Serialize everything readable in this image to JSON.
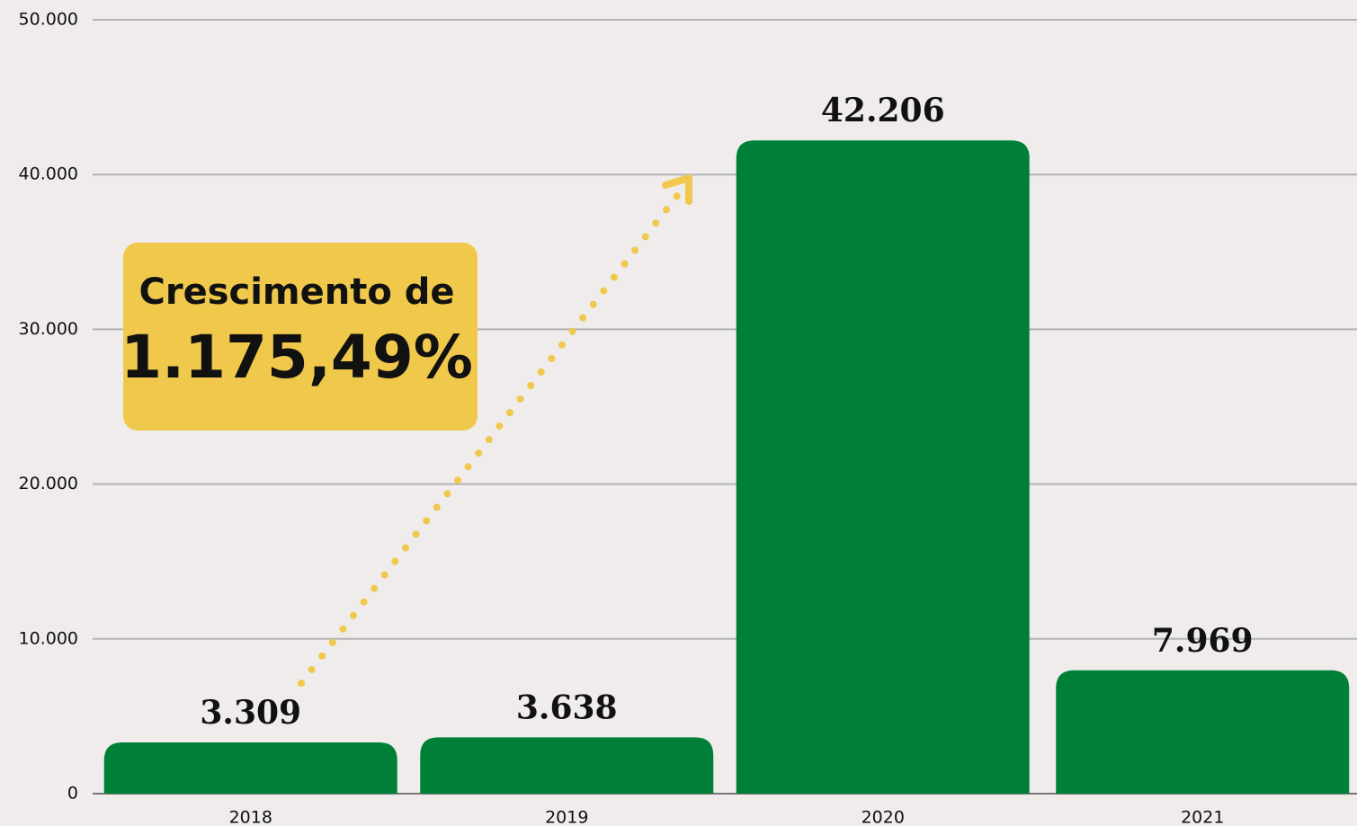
{
  "chart_data": {
    "type": "bar",
    "categories": [
      "2018",
      "2019",
      "2020",
      "2021"
    ],
    "values": [
      3309,
      3638,
      42206,
      7969
    ],
    "value_labels": [
      "3.309",
      "3.638",
      "42.206",
      "7.969"
    ],
    "color": "#008037",
    "ylim": [
      0,
      50000
    ],
    "yticks": [
      0,
      {
        "value": 10000,
        "label": "10.000"
      },
      {
        "value": 20000,
        "label": "20.000"
      },
      {
        "value": 30000,
        "label": "30.000"
      },
      {
        "value": 40000,
        "label": "40.000"
      },
      {
        "value": 50000,
        "label": "50.000"
      }
    ],
    "grid": true,
    "annotation": {
      "line1": "Crescimento de",
      "line2": "1.175,49%"
    }
  }
}
